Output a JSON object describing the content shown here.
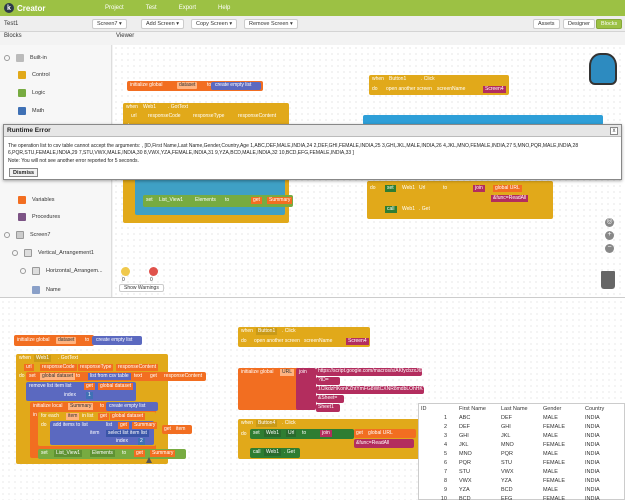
{
  "app": {
    "brand": "Creator",
    "logo_letter": "k"
  },
  "menu": [
    "Project",
    "Test",
    "Export",
    "Help"
  ],
  "toolbar": {
    "project_name": "Test1",
    "screen_select": "Screen7 ▾",
    "add_screen": "Add Screen ▾",
    "copy_screen": "Copy Screen ▾",
    "remove_screen": "Remove Screen ▾",
    "assets": "Assets",
    "designer": "Designer",
    "blocks": "Blocks"
  },
  "panels": {
    "blocks_header": "Blocks",
    "viewer_header": "Viewer"
  },
  "tree": {
    "builtin": "Built-in",
    "items": [
      "Control",
      "Logic",
      "Math",
      "Variables",
      "Procedures"
    ],
    "screen": "Screen7",
    "vertical": "Vertical_Arrangement1",
    "horizontal": "Horizontal_Arrangem...",
    "name": "Name"
  },
  "colors": {
    "control": "#e1a91a",
    "logic": "#77ab41",
    "math": "#3f71b5",
    "variables": "#f26e21",
    "procedures": "#7c5385",
    "text": "#b32d5e",
    "event": "#d2a11b",
    "component": "#2e7d32"
  },
  "dialog": {
    "title": "Runtime Error",
    "close": "x",
    "message": "The operation list to csv table cannot accept the arguments: , [ID,First Name,Last Name,Gender,Country,Age 1,ABC,DEF,MALE,INDIA,24 2,DEF,GHI,FEMALE,INDIA,25 3,GHI,JKL,MALE,INDIA,26 4,JKL,MNO,FEMALE,INDIA,27 5,MNO,PQR,MALE,INDIA,28 6,PQR,STU,FEMALE,INDIA,29 7,STU,VWX,MALE,INDIA,30 8,VWX,YZA,FEMALE,INDIA,31 9,YZA,BCD,MALE,INDIA,32 10,BCD,EFG,FEMALE,INDIA,33 ]",
    "note": "Note: You will not see another error reported for 5 seconds.",
    "dismiss": "Dismiss"
  },
  "warnings": {
    "count_a": "0",
    "count_b": "0",
    "show": "Show Warnings"
  },
  "blocks": {
    "init_dataset": "initialize global",
    "dataset_var": "dataset",
    "to": "to",
    "create_empty_list": "create empty list",
    "when": "when",
    "web1": "Web1",
    "got_text": ". GotText",
    "url_param": "url",
    "response_code": "responseCode",
    "response_type": "responseType",
    "response_content": "responseContent",
    "do": "do",
    "set": "set",
    "global_dataset": "global dataset",
    "list_from_csv": "list from csv table",
    "text": "text",
    "get": "get",
    "remove_list_item": "remove list item list",
    "index": "index",
    "num1": "1",
    "init_local": "initialize local",
    "summary": "Summary",
    "in": "in",
    "for_each": "for each",
    "item": "item",
    "in_list": "in list",
    "add_items": "add items to list",
    "list": "list",
    "select_list_item": "select list item list",
    "num2": "2",
    "get_item": "item",
    "list_view": "List_View1",
    "elements": "Elements",
    "button1": "Button1",
    "click": ". Click",
    "open_screen": "open another screen",
    "screen_name": "screenName",
    "screen4": "Screen4",
    "init_url": "initialize global",
    "url_var": "URL",
    "join": "join",
    "url1": "https://script.google.com/macros/s/AKfycbzxJ6BmJ...",
    "q": "?ID=",
    "sheet_id": "1ClkdzHKonKZhtYmFG8WtCXNR8mdbLOhHKYuNHYs0",
    "amp_sheet": "&Sheet=",
    "sheet1": "Sheet1",
    "button4": "Button4",
    "web_url": "Url",
    "global_url": "global URL",
    "func": "&func=ReadAll",
    "call": "call",
    "web_get": ". Get"
  },
  "sheet": {
    "headers": [
      "ID",
      "First Name",
      "Last Name",
      "Gender",
      "Country"
    ],
    "rows": [
      [
        "1",
        "ABC",
        "DEF",
        "MALE",
        "INDIA"
      ],
      [
        "2",
        "DEF",
        "GHI",
        "FEMALE",
        "INDIA"
      ],
      [
        "3",
        "GHI",
        "JKL",
        "MALE",
        "INDIA"
      ],
      [
        "4",
        "JKL",
        "MNO",
        "FEMALE",
        "INDIA"
      ],
      [
        "5",
        "MNO",
        "PQR",
        "MALE",
        "INDIA"
      ],
      [
        "6",
        "PQR",
        "STU",
        "FEMALE",
        "INDIA"
      ],
      [
        "7",
        "STU",
        "VWX",
        "MALE",
        "INDIA"
      ],
      [
        "8",
        "VWX",
        "YZA",
        "FEMALE",
        "INDIA"
      ],
      [
        "9",
        "YZA",
        "BCD",
        "MALE",
        "INDIA"
      ],
      [
        "10",
        "BCD",
        "EFG",
        "FEMALE",
        "INDIA"
      ]
    ]
  }
}
